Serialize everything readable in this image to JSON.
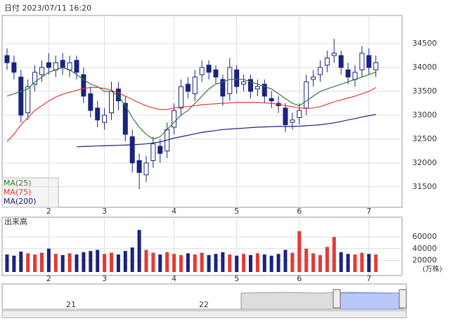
{
  "chart_data": {
    "type": "candlestick",
    "title": "日付 2023/07/11 16:20",
    "categories": [
      null,
      null,
      null,
      null,
      null,
      null,
      "2",
      null,
      null,
      null,
      null,
      null,
      null,
      null,
      "3",
      null,
      null,
      null,
      null,
      null,
      null,
      null,
      null,
      null,
      "4",
      null,
      null,
      null,
      null,
      null,
      null,
      null,
      null,
      "5",
      null,
      null,
      null,
      null,
      null,
      null,
      null,
      null,
      "6",
      null,
      null,
      null,
      null,
      null,
      null,
      null,
      null,
      null,
      "7",
      null
    ],
    "open": [
      34250,
      34100,
      33800,
      33050,
      33650,
      33850,
      34100,
      33950,
      34150,
      33950,
      34150,
      33850,
      33450,
      33150,
      32850,
      33050,
      33550,
      33250,
      32550,
      32050,
      31750,
      32050,
      32350,
      32250,
      32750,
      33150,
      33650,
      33450,
      33850,
      34050,
      33950,
      33750,
      33450,
      33950,
      33650,
      33750,
      33550,
      33650,
      33350,
      33250,
      33150,
      32850,
      32950,
      33150,
      33750,
      33850,
      34050,
      34250,
      34250,
      33950,
      33750,
      33950,
      34250,
      33950
    ],
    "high": [
      34400,
      34250,
      33950,
      33750,
      34050,
      34150,
      34300,
      34250,
      34300,
      34250,
      34250,
      34000,
      33600,
      33300,
      33150,
      33700,
      33700,
      33400,
      32700,
      32200,
      32150,
      32550,
      32500,
      32850,
      33250,
      33750,
      33800,
      33950,
      34150,
      34150,
      34050,
      33850,
      34200,
      34050,
      33850,
      33850,
      33750,
      33750,
      33500,
      33400,
      33250,
      33050,
      33250,
      33850,
      33950,
      34150,
      34350,
      34600,
      34350,
      34100,
      34050,
      34450,
      34400,
      34250
    ],
    "low": [
      33950,
      33750,
      32850,
      32900,
      33500,
      33700,
      33850,
      33800,
      33850,
      33800,
      33750,
      33250,
      32950,
      32750,
      32700,
      32900,
      33100,
      32450,
      31800,
      31450,
      31600,
      31900,
      32000,
      32100,
      32600,
      33000,
      33350,
      33300,
      33700,
      33750,
      33650,
      33200,
      33300,
      33450,
      33500,
      33350,
      33400,
      33250,
      33150,
      33050,
      32650,
      32700,
      32800,
      33000,
      33600,
      33700,
      33900,
      34100,
      33850,
      33650,
      33600,
      33800,
      33850,
      33800
    ],
    "close": [
      34100,
      33900,
      33000,
      33600,
      33900,
      34000,
      34000,
      34100,
      34000,
      34100,
      33900,
      33400,
      33100,
      32900,
      33000,
      33500,
      33300,
      32600,
      32000,
      31800,
      32000,
      32400,
      32200,
      32700,
      33100,
      33600,
      33500,
      33800,
      34000,
      33900,
      33800,
      33400,
      34000,
      33600,
      33700,
      33500,
      33600,
      33400,
      33300,
      33200,
      32800,
      32900,
      33100,
      33700,
      33800,
      34000,
      34200,
      34300,
      34000,
      33800,
      33900,
      34300,
      34000,
      34100
    ],
    "series": [
      {
        "name": "MA(25)",
        "color": "#2e7d32",
        "values": [
          33400,
          33450,
          33500,
          33550,
          33700,
          33800,
          33900,
          33950,
          34000,
          33950,
          33850,
          33750,
          33650,
          33600,
          33500,
          33500,
          33400,
          33200,
          32950,
          32750,
          32600,
          32500,
          32550,
          32700,
          32850,
          33000,
          33100,
          33250,
          33400,
          33550,
          33650,
          33700,
          33750,
          33750,
          33750,
          33700,
          33650,
          33600,
          33550,
          33450,
          33350,
          33250,
          33200,
          33300,
          33400,
          33500,
          33550,
          33600,
          33650,
          33700,
          33750,
          33800,
          33850,
          33900
        ]
      },
      {
        "name": "MA(75)",
        "color": "#e53935",
        "values": [
          32450,
          32600,
          32800,
          32950,
          33100,
          33200,
          33300,
          33380,
          33440,
          33480,
          33520,
          33560,
          33580,
          33580,
          33560,
          33520,
          33470,
          33400,
          33330,
          33260,
          33200,
          33150,
          33120,
          33120,
          33150,
          33170,
          33180,
          33200,
          33220,
          33230,
          33240,
          33250,
          33260,
          33270,
          33270,
          33270,
          33270,
          33260,
          33250,
          33230,
          33200,
          33180,
          33150,
          33140,
          33150,
          33180,
          33230,
          33280,
          33320,
          33360,
          33400,
          33450,
          33500,
          33580
        ]
      },
      {
        "name": "MA(200)",
        "color": "#1a237e",
        "values": [
          null,
          null,
          null,
          null,
          null,
          null,
          null,
          null,
          null,
          null,
          32340,
          32345,
          32350,
          32355,
          32360,
          32365,
          32370,
          32375,
          32380,
          32390,
          32400,
          32420,
          32440,
          32480,
          32520,
          32550,
          32580,
          32610,
          32640,
          32660,
          32680,
          32700,
          32710,
          32720,
          32730,
          32740,
          32750,
          32755,
          32760,
          32765,
          32765,
          32765,
          32770,
          32780,
          32790,
          32800,
          32820,
          32840,
          32870,
          32900,
          32930,
          32960,
          32990,
          33015
        ]
      }
    ],
    "ylim": [
      31070,
      35090
    ],
    "yticks": [
      31500,
      32000,
      32500,
      33000,
      33500,
      34000,
      34500
    ],
    "grid": true,
    "volume": {
      "label": "出来高",
      "unit": "(万株)",
      "up_color": "#e53935",
      "down_color": "#1a237e",
      "values": [
        30000,
        28000,
        35000,
        32000,
        30000,
        33000,
        40000,
        31000,
        29000,
        32000,
        30000,
        34000,
        36000,
        38000,
        31000,
        33000,
        30000,
        36000,
        42000,
        72000,
        38000,
        33000,
        30000,
        34000,
        31000,
        29000,
        32000,
        30000,
        33000,
        29000,
        31000,
        34000,
        30000,
        28000,
        31000,
        29000,
        32000,
        30000,
        28000,
        31000,
        38000,
        33000,
        70000,
        40000,
        32000,
        29000,
        43000,
        60000,
        34000,
        31000,
        30000,
        33000,
        31000,
        30000
      ],
      "ylim": [
        0,
        94000
      ],
      "yticks": [
        20000,
        40000,
        60000
      ]
    },
    "navigator": {
      "labels": [
        "21",
        "22"
      ]
    }
  }
}
